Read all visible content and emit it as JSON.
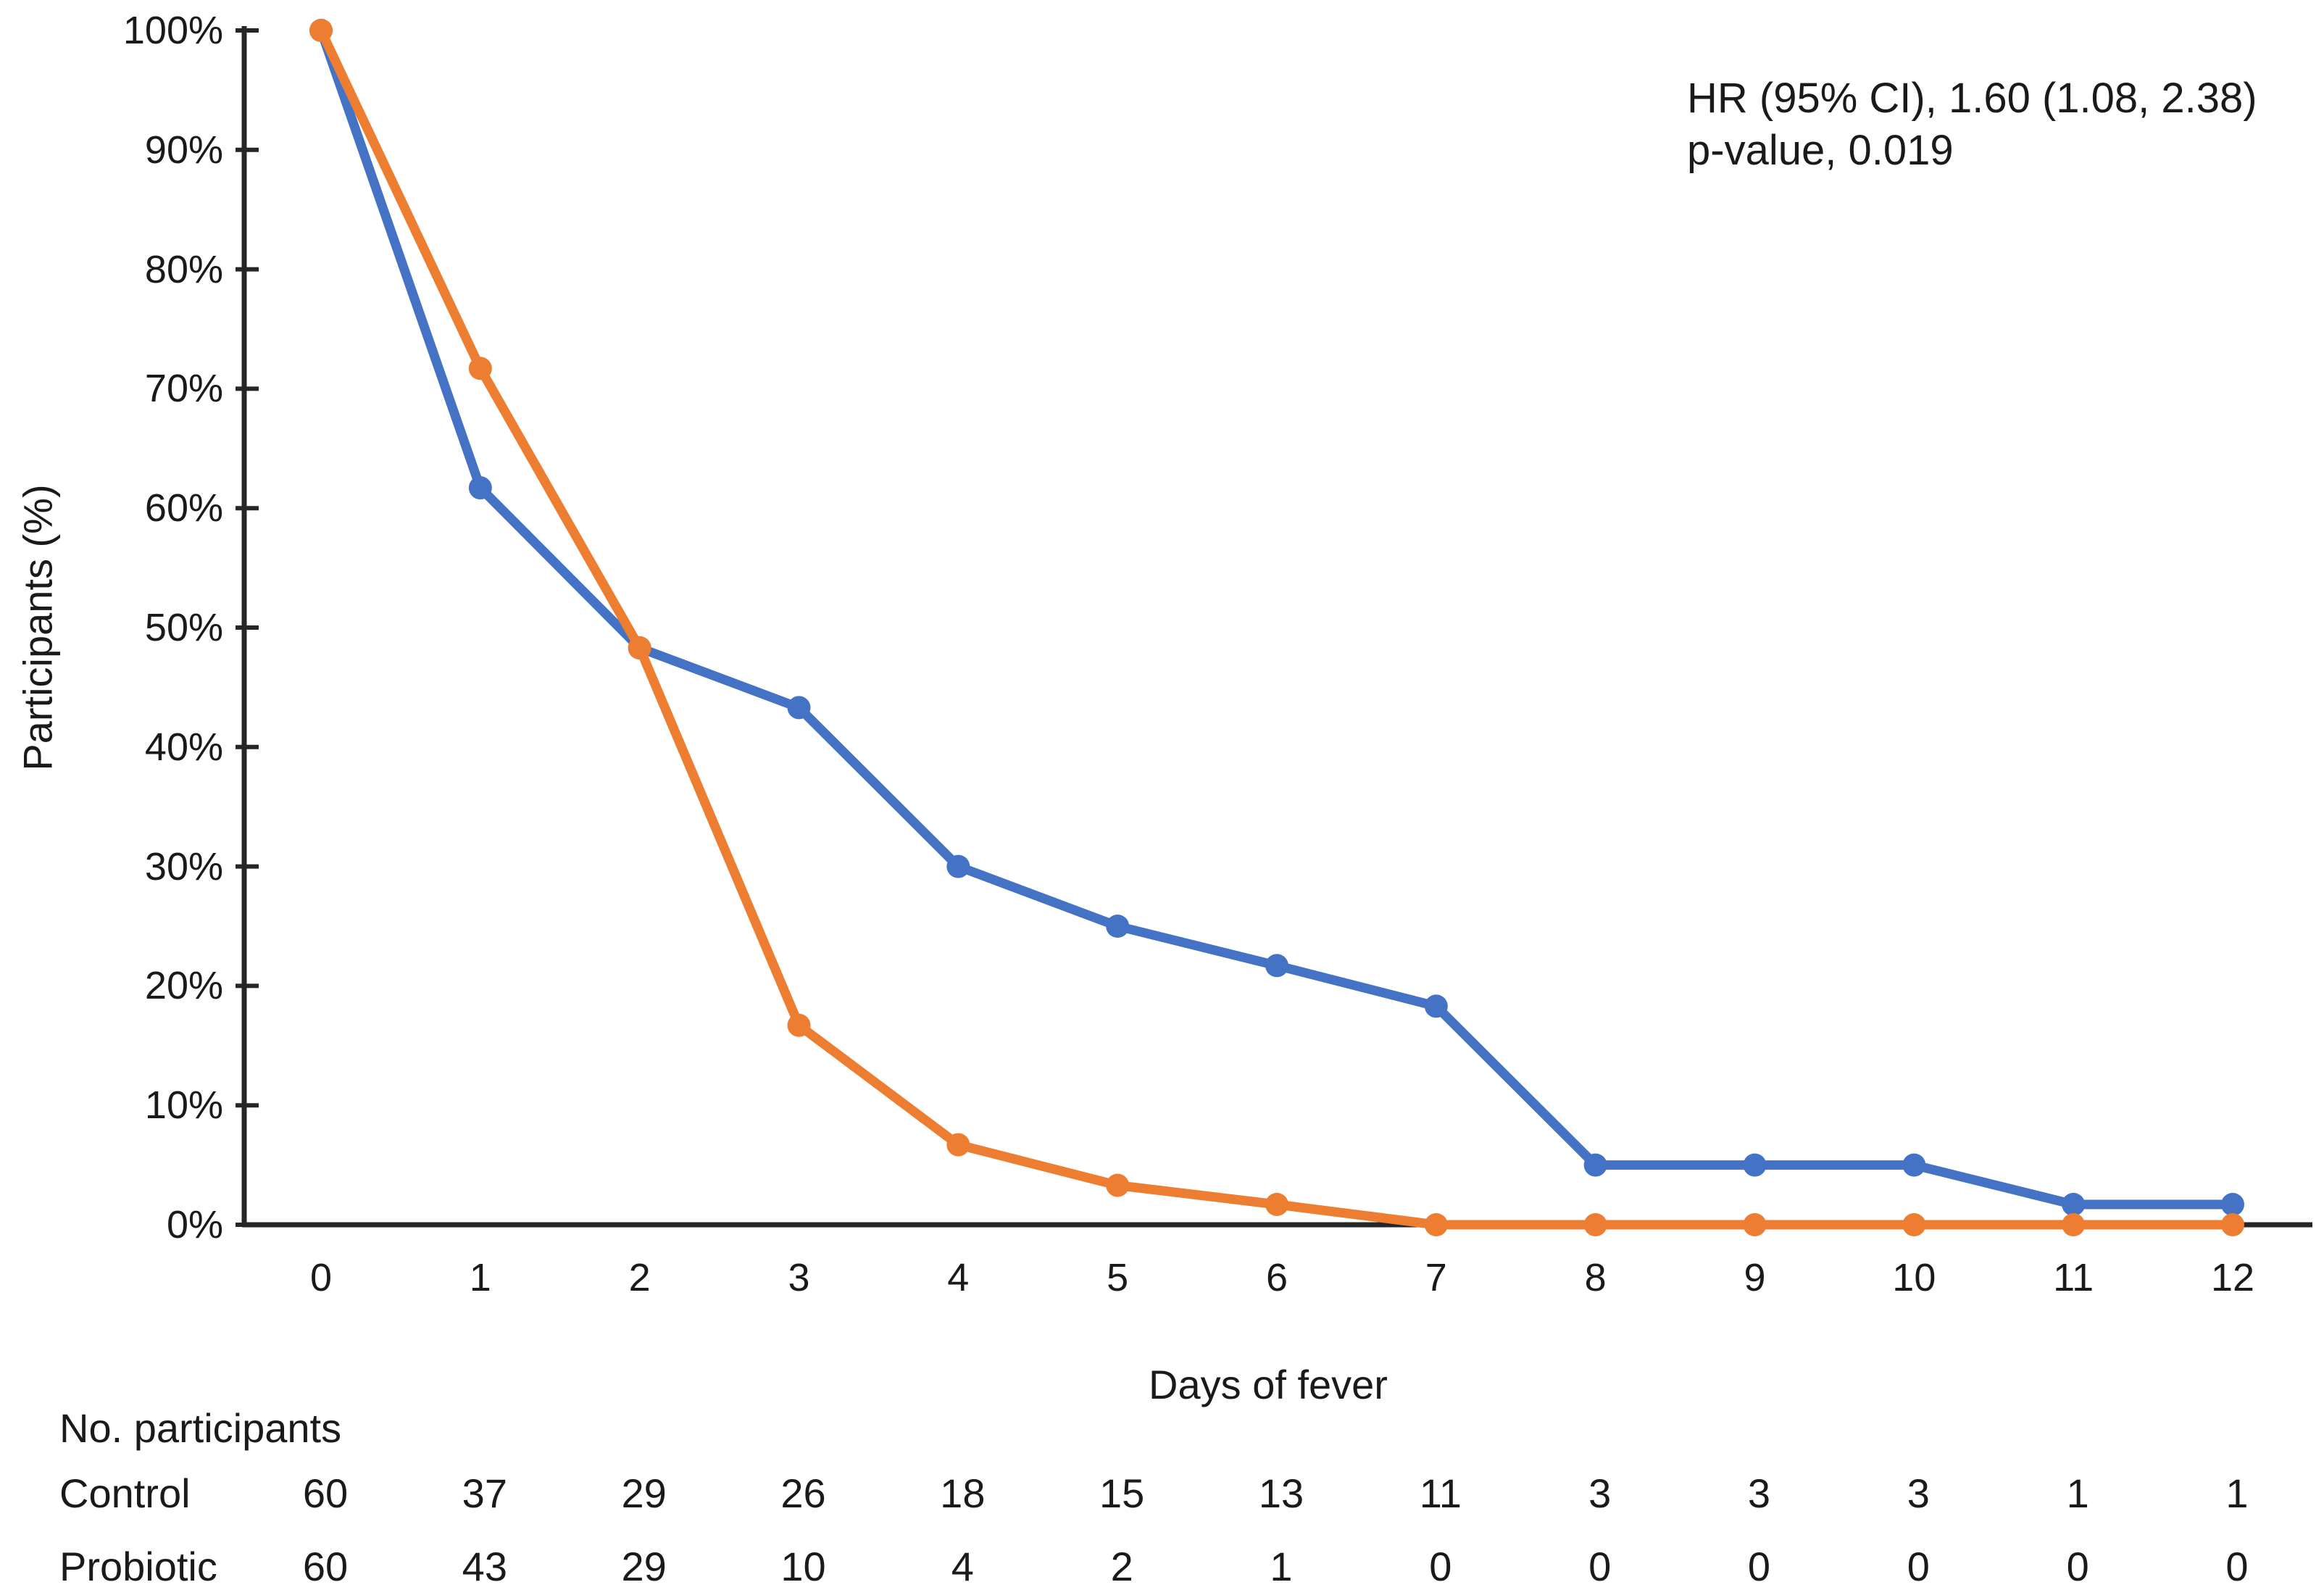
{
  "chart_data": {
    "type": "line",
    "title": "",
    "xlabel": "Days of fever",
    "ylabel": "Participants (%)",
    "x": [
      0,
      1,
      2,
      3,
      4,
      5,
      6,
      7,
      8,
      9,
      10,
      11,
      12
    ],
    "x_tick_labels": [
      "0",
      "1",
      "2",
      "3",
      "4",
      "5",
      "6",
      "7",
      "8",
      "9",
      "10",
      "11",
      "12"
    ],
    "ylim": [
      0,
      100
    ],
    "y_ticks_percent": [
      0,
      10,
      20,
      30,
      40,
      50,
      60,
      70,
      80,
      90,
      100
    ],
    "y_tick_labels": [
      "0%",
      "10%",
      "20%",
      "30%",
      "40%",
      "50%",
      "60%",
      "70%",
      "80%",
      "90%",
      "100%"
    ],
    "grid": false,
    "legend": "none",
    "series": [
      {
        "name": "Control",
        "color": "#4472C4",
        "values_percent": [
          100,
          61.7,
          48.3,
          43.3,
          30,
          25,
          21.7,
          18.3,
          5,
          5,
          5,
          1.7,
          1.7
        ]
      },
      {
        "name": "Probiotic",
        "color": "#ED7D31",
        "values_percent": [
          100,
          71.7,
          48.3,
          16.7,
          6.7,
          3.3,
          1.7,
          0,
          0,
          0,
          0,
          0,
          0
        ]
      }
    ]
  },
  "annotation": {
    "line1": "HR (95% CI), 1.60 (1.08, 2.38)",
    "line2": "p-value, 0.019"
  },
  "risk_table": {
    "title": "No. participants",
    "rows": [
      {
        "label": "Control",
        "counts": [
          "60",
          "37",
          "29",
          "26",
          "18",
          "15",
          "13",
          "11",
          "3",
          "3",
          "3",
          "1",
          "1"
        ]
      },
      {
        "label": "Probiotic",
        "counts": [
          "60",
          "43",
          "29",
          "10",
          "4",
          "2",
          "1",
          "0",
          "0",
          "0",
          "0",
          "0",
          "0"
        ]
      }
    ]
  },
  "colors": {
    "axis": "#262626",
    "text": "#1a1a1a",
    "control_series": "#4472C4",
    "probiotic_series": "#ED7D31"
  }
}
